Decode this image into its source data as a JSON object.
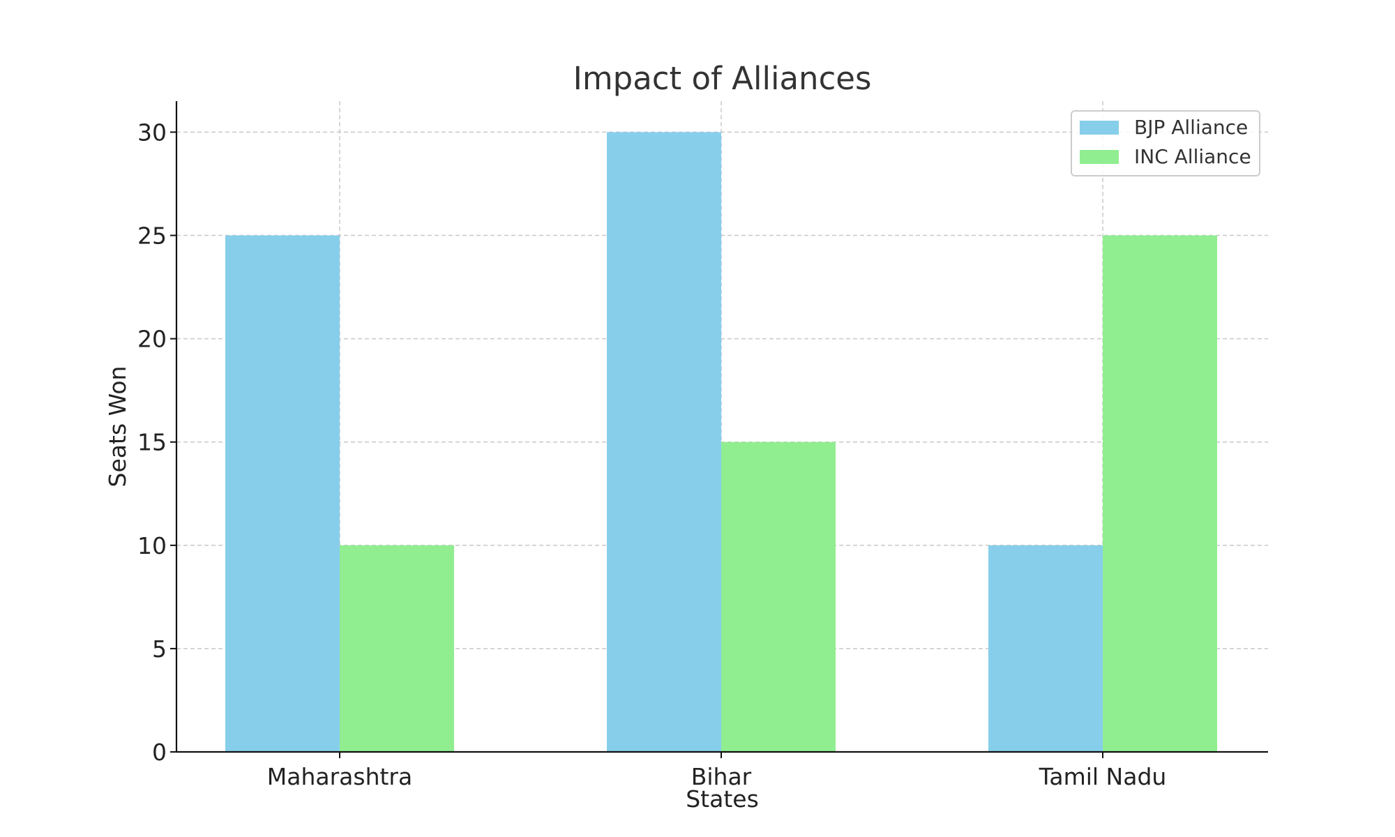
{
  "chart_data": {
    "type": "bar",
    "title": "Impact of Alliances",
    "xlabel": "States",
    "ylabel": "Seats Won",
    "categories": [
      "Maharashtra",
      "Bihar",
      "Tamil Nadu"
    ],
    "series": [
      {
        "name": "BJP Alliance",
        "values": [
          25,
          30,
          10
        ],
        "color": "#87CEEB"
      },
      {
        "name": "INC Alliance",
        "values": [
          10,
          15,
          25
        ],
        "color": "#90EE90"
      }
    ],
    "ylim": [
      0,
      31.5
    ],
    "yticks": [
      0,
      5,
      10,
      15,
      20,
      25,
      30
    ],
    "grid": true,
    "legend_position": "top-right"
  }
}
